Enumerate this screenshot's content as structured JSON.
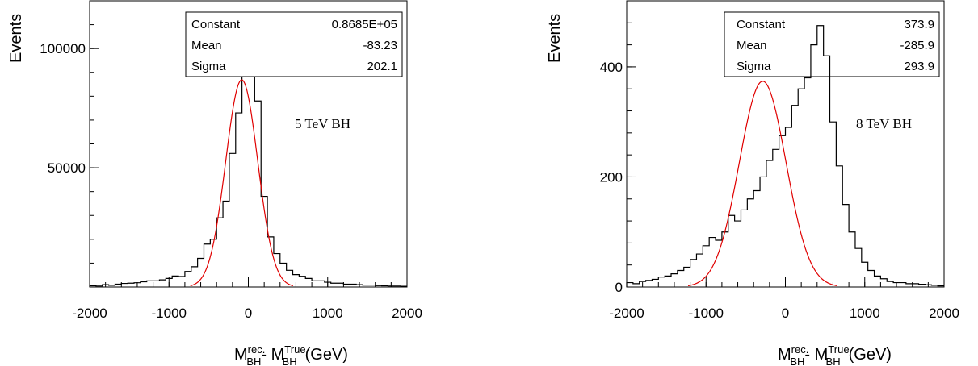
{
  "chart_data": [
    {
      "type": "histogram",
      "ylabel": "Events",
      "xlabel_main": "M",
      "xlabel_sub1": "BH",
      "xlabel_sup1": "rec.",
      "xlabel_mid": "- M",
      "xlabel_sub2": "BH",
      "xlabel_sup2": "True",
      "xlabel_unit": "(GeV)",
      "annotation": "5 TeV BH",
      "xlim": [
        -2000,
        2000
      ],
      "ylim": [
        0,
        120000
      ],
      "x_ticks": [
        -2000,
        -1000,
        0,
        1000,
        2000
      ],
      "x_tick_labels": [
        "-2000",
        "-1000",
        "0",
        "1000",
        "2000"
      ],
      "y_ticks": [
        50000,
        100000
      ],
      "y_tick_labels": [
        "50000",
        "100000"
      ],
      "bin_width": 80,
      "bin_edges_start": -2000,
      "counts": [
        500,
        400,
        1000,
        700,
        1200,
        1500,
        1600,
        1800,
        2200,
        2600,
        2600,
        3000,
        3600,
        4600,
        4400,
        6500,
        8500,
        12000,
        18000,
        20000,
        29000,
        36000,
        56000,
        73000,
        105000,
        112000,
        78000,
        38000,
        21000,
        14000,
        10000,
        7000,
        5200,
        4500,
        3600,
        2600,
        2600,
        2000,
        1600,
        1600,
        1200,
        1200,
        1000,
        800,
        800,
        600,
        500,
        400,
        400,
        300
      ],
      "fit": {
        "function": "gaussian",
        "color": "#e00000",
        "constant": 86850,
        "mean": -83.23,
        "sigma": 202.1
      },
      "stats_box": [
        {
          "label": "Constant",
          "value": "0.8685E+05"
        },
        {
          "label": "Mean",
          "value": "-83.23"
        },
        {
          "label": "Sigma",
          "value": "202.1"
        }
      ]
    },
    {
      "type": "histogram",
      "ylabel": "Events",
      "xlabel_main": "M",
      "xlabel_sub1": "BH",
      "xlabel_sup1": "rec.",
      "xlabel_mid": "- M",
      "xlabel_sub2": "BH",
      "xlabel_sup2": "True",
      "xlabel_unit": "(GeV)",
      "annotation": "8 TeV BH",
      "xlim": [
        -2000,
        2000
      ],
      "ylim": [
        0,
        520
      ],
      "x_ticks": [
        -2000,
        -1000,
        0,
        1000,
        2000
      ],
      "x_tick_labels": [
        "-2000",
        "-1000",
        "0",
        "1000",
        "2000"
      ],
      "y_ticks": [
        0,
        200,
        400
      ],
      "y_tick_labels": [
        "0",
        "200",
        "400"
      ],
      "bin_width": 80,
      "bin_edges_start": -2000,
      "counts": [
        8,
        6,
        10,
        12,
        14,
        18,
        20,
        24,
        30,
        36,
        50,
        60,
        75,
        90,
        85,
        100,
        130,
        120,
        140,
        160,
        175,
        200,
        230,
        250,
        275,
        290,
        330,
        360,
        380,
        440,
        475,
        420,
        300,
        220,
        150,
        100,
        70,
        45,
        30,
        20,
        15,
        10,
        8,
        8,
        6,
        6,
        5,
        4,
        3,
        2
      ],
      "fit": {
        "function": "gaussian",
        "color": "#e00000",
        "constant": 373.9,
        "mean": -285.9,
        "sigma": 293.9
      },
      "stats_box": [
        {
          "label": "Constant",
          "value": "373.9"
        },
        {
          "label": "Mean",
          "value": "-285.9"
        },
        {
          "label": "Sigma",
          "value": "293.9"
        }
      ]
    }
  ]
}
